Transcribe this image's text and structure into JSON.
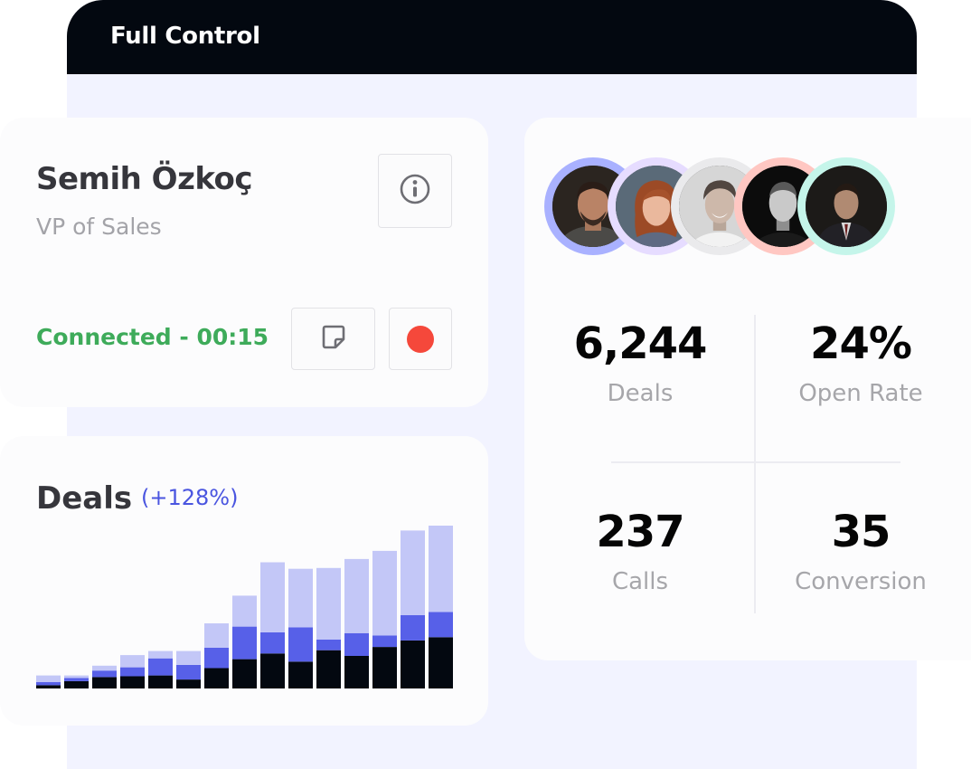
{
  "window": {
    "title": "Full Control"
  },
  "contact": {
    "name": "Semih Özkoç",
    "role": "VP of Sales",
    "status": "Connected - 00:15",
    "info_icon": "info-icon",
    "note_icon": "sticky-note-icon",
    "record_icon": "record-icon"
  },
  "deals": {
    "title": "Deals",
    "change": "(+128%)"
  },
  "team": {
    "avatars": [
      {
        "ring_color": "#a9b1ff"
      },
      {
        "ring_color": "#e6dcff"
      },
      {
        "ring_color": "#eaeaec"
      },
      {
        "ring_color": "#ffc7c2"
      },
      {
        "ring_color": "#c5f5ea"
      }
    ]
  },
  "stats": [
    {
      "value": "6,244",
      "label": "Deals"
    },
    {
      "value": "24%",
      "label": "Open Rate"
    },
    {
      "value": "237",
      "label": "Calls"
    },
    {
      "value": "35",
      "label": "Conversion"
    }
  ],
  "colors": {
    "header_bg": "#030810",
    "frame_bg": "#f2f3ff",
    "status_green": "#3eab5a",
    "record_red": "#f5483b",
    "accent_blue": "#4a55e0",
    "bar_dark": "#030810",
    "bar_mid": "#5760e8",
    "bar_light": "#c3c7f7"
  },
  "chart_data": {
    "type": "bar",
    "stacked": true,
    "y_axis_visible": false,
    "x_axis_visible": false,
    "categories": [
      "1",
      "2",
      "3",
      "4",
      "5",
      "6",
      "7",
      "8",
      "9",
      "10",
      "11",
      "12",
      "13",
      "14",
      "15"
    ],
    "series": [
      {
        "values": [
          4,
          9,
          14,
          15,
          16,
          11,
          25,
          36,
          43,
          33,
          47,
          40,
          51,
          59,
          63
        ]
      },
      {
        "values": [
          4,
          4,
          8,
          11,
          21,
          18,
          25,
          40,
          26,
          42,
          13,
          28,
          14,
          31,
          31
        ]
      },
      {
        "values": [
          8,
          3,
          6,
          15,
          9,
          17,
          30,
          38,
          86,
          72,
          88,
          91,
          104,
          104,
          106
        ]
      }
    ]
  }
}
